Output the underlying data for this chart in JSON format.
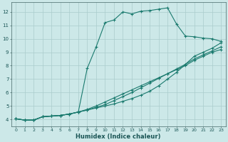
{
  "xlabel": "Humidex (Indice chaleur)",
  "bg_color": "#cce8e8",
  "grid_color": "#aacccc",
  "line_color": "#1a7a6e",
  "xlim": [
    -0.5,
    23.5
  ],
  "ylim": [
    3.5,
    12.7
  ],
  "xticks": [
    0,
    1,
    2,
    3,
    4,
    5,
    6,
    7,
    8,
    9,
    10,
    11,
    12,
    13,
    14,
    15,
    16,
    17,
    18,
    19,
    20,
    21,
    22,
    23
  ],
  "yticks": [
    4,
    5,
    6,
    7,
    8,
    9,
    10,
    11,
    12
  ],
  "line1_x": [
    0,
    1,
    2,
    3,
    4,
    5,
    6,
    7,
    8,
    9,
    10,
    11,
    12,
    13,
    14,
    15,
    16,
    17,
    18,
    19,
    20,
    21,
    22,
    23
  ],
  "line1_y": [
    4.05,
    3.95,
    3.95,
    4.2,
    4.25,
    4.3,
    4.4,
    4.55,
    7.8,
    9.4,
    11.2,
    11.4,
    12.0,
    11.85,
    12.05,
    12.1,
    12.2,
    12.3,
    11.1,
    10.2,
    10.15,
    10.05,
    10.0,
    9.8
  ],
  "line2_x": [
    0,
    1,
    2,
    3,
    4,
    5,
    6,
    7,
    8,
    9,
    10,
    11,
    12,
    13,
    14,
    15,
    16,
    17,
    18,
    19,
    20,
    21,
    22,
    23
  ],
  "line2_y": [
    4.05,
    3.95,
    3.95,
    4.2,
    4.25,
    4.3,
    4.4,
    4.55,
    4.7,
    4.85,
    5.0,
    5.15,
    5.35,
    5.55,
    5.8,
    6.1,
    6.5,
    7.0,
    7.5,
    8.1,
    8.7,
    9.0,
    9.3,
    9.7
  ],
  "line3_x": [
    0,
    1,
    2,
    3,
    4,
    5,
    6,
    7,
    8,
    9,
    10,
    11,
    12,
    13,
    14,
    15,
    16,
    17,
    18,
    19,
    20,
    21,
    22,
    23
  ],
  "line3_y": [
    4.05,
    3.95,
    3.95,
    4.2,
    4.25,
    4.3,
    4.4,
    4.55,
    4.75,
    5.0,
    5.3,
    5.6,
    5.9,
    6.2,
    6.5,
    6.8,
    7.1,
    7.4,
    7.7,
    8.0,
    8.4,
    8.7,
    9.0,
    9.2
  ],
  "line4_x": [
    0,
    1,
    2,
    3,
    4,
    5,
    6,
    7,
    8,
    9,
    10,
    11,
    12,
    13,
    14,
    15,
    16,
    17,
    18,
    19,
    20,
    21,
    22,
    23
  ],
  "line4_y": [
    4.05,
    3.95,
    3.95,
    4.2,
    4.25,
    4.3,
    4.4,
    4.55,
    4.7,
    4.9,
    5.1,
    5.4,
    5.7,
    6.0,
    6.35,
    6.7,
    7.05,
    7.4,
    7.75,
    8.1,
    8.5,
    8.8,
    9.1,
    9.4
  ]
}
